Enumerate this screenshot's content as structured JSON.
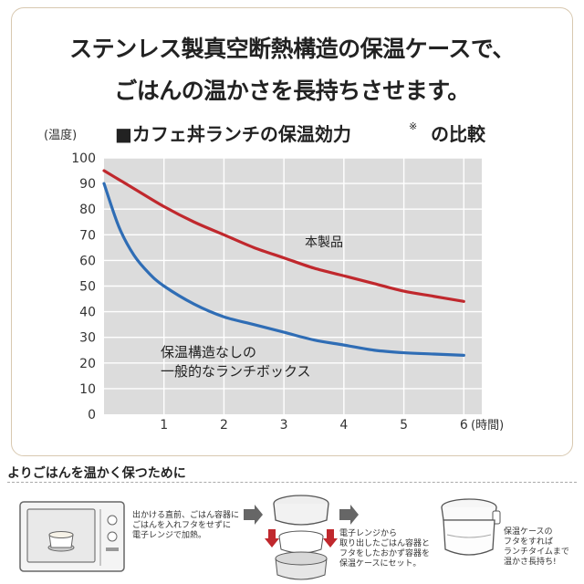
{
  "headline": {
    "line1": "ステンレス製真空断熱構造の保温ケースで、",
    "line2": "ごはんの温かさを長持ちさせます。"
  },
  "chart_data": {
    "type": "line",
    "title": "■カフェ丼ランチの保温効力",
    "title_mark": "※",
    "title_suffix": "の比較",
    "ylabel": "(温度)",
    "xlabel": "(時間)",
    "ylim": [
      0,
      100
    ],
    "xlim": [
      0,
      6.3
    ],
    "yticks": [
      0,
      10,
      20,
      30,
      40,
      50,
      60,
      70,
      80,
      90,
      100
    ],
    "xticks": [
      1,
      2,
      3,
      4,
      5,
      6
    ],
    "grid": true,
    "series": [
      {
        "name": "本製品",
        "color": "#c0282d",
        "x": [
          0,
          0.5,
          1,
          1.5,
          2,
          2.5,
          3,
          3.5,
          4,
          4.5,
          5,
          5.5,
          6
        ],
        "y": [
          95,
          88,
          81,
          75,
          70,
          65,
          61,
          57,
          54,
          51,
          48,
          46,
          44
        ]
      },
      {
        "name": "保温構造なしの\n一般的なランチボックス",
        "color": "#2f6db5",
        "x": [
          0,
          0.25,
          0.5,
          0.75,
          1,
          1.5,
          2,
          2.5,
          3,
          3.5,
          4,
          4.5,
          5,
          5.5,
          6
        ],
        "y": [
          90,
          73,
          62,
          55,
          50,
          43,
          38,
          35,
          32,
          29,
          27,
          25,
          24,
          23.5,
          23
        ]
      }
    ]
  },
  "bottom": {
    "title": "よりごはんを温かく保つために",
    "step1": "出かける直前、ごはん容器に\nごはんを入れフタをせずに\n電子レンジで加熱。",
    "step2": "電子レンジから\n取り出したごはん容器と\nフタをしたおかず容器を\n保温ケースにセット。",
    "step3": "保温ケースの\nフタをすれば\nランチタイムまで\n温かさ長持ち!"
  }
}
